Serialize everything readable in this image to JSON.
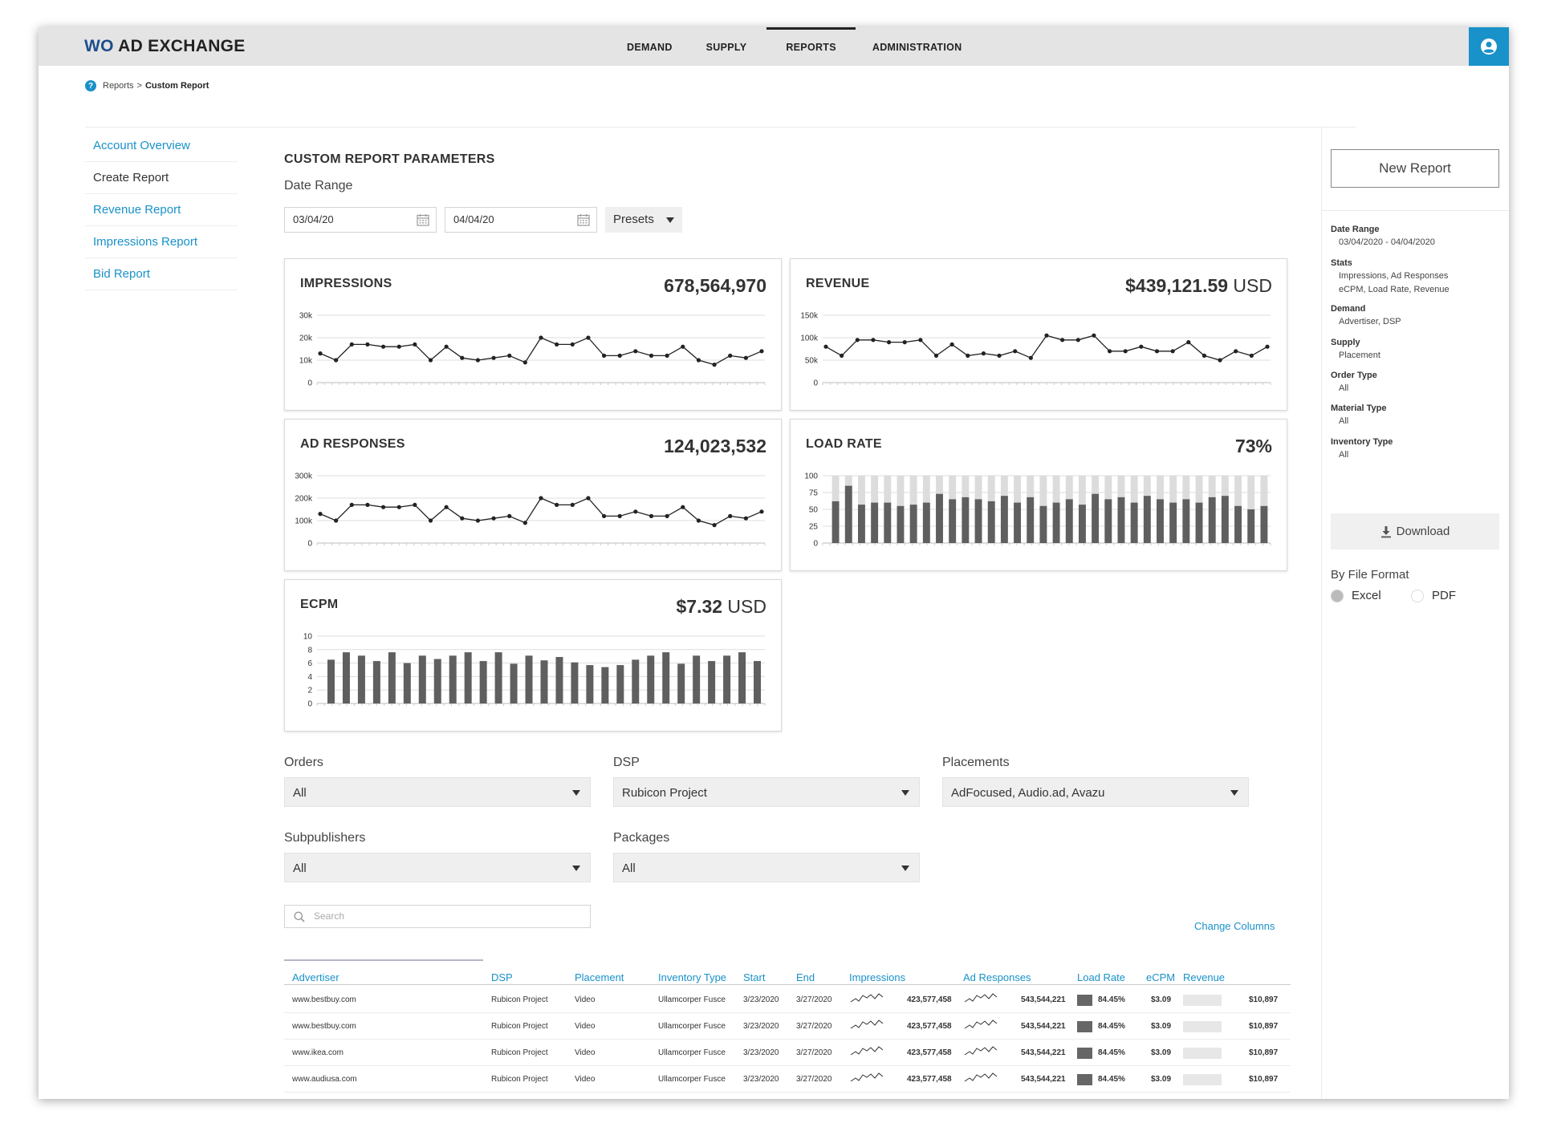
{
  "app": {
    "logo_prefix": "WO",
    "logo_rest": " AD EXCHANGE",
    "nav": [
      "DEMAND",
      "SUPPLY",
      "REPORTS",
      "ADMINISTRATION"
    ],
    "active_nav": "REPORTS"
  },
  "breadcrumb": {
    "parent": "Reports",
    "separator": ">",
    "current": "Custom Report"
  },
  "sidebar": {
    "items": [
      {
        "label": "Account Overview"
      },
      {
        "label": "Create Report"
      },
      {
        "label": "Revenue Report"
      },
      {
        "label": "Impressions Report"
      },
      {
        "label": "Bid Report"
      }
    ]
  },
  "params": {
    "title": "CUSTOM REPORT PARAMETERS",
    "date_range_label": "Date Range",
    "start_date": "03/04/20",
    "end_date": "04/04/20",
    "presets_label": "Presets"
  },
  "cards": [
    {
      "title": "IMPRESSIONS",
      "value": "678,564,970",
      "unit": ""
    },
    {
      "title": "REVENUE",
      "value": "$439,121.59",
      "unit": " USD"
    },
    {
      "title": "AD RESPONSES",
      "value": "124,023,532",
      "unit": ""
    },
    {
      "title": "LOAD RATE",
      "value": "73%",
      "unit": ""
    },
    {
      "title": "ECPM",
      "value": "$7.32",
      "unit": " USD"
    }
  ],
  "chart_data": [
    {
      "type": "line",
      "title": "IMPRESSIONS",
      "yticks": [
        "0",
        "10k",
        "20k",
        "30k"
      ],
      "ylim": [
        0,
        30000
      ],
      "values": [
        13000,
        10000,
        17000,
        17000,
        16000,
        16000,
        17000,
        10000,
        16000,
        11000,
        10000,
        11000,
        12000,
        9000,
        20000,
        17000,
        17000,
        20000,
        12000,
        12000,
        14000,
        12000,
        12000,
        16000,
        10000,
        8000,
        12000,
        11000,
        14000
      ]
    },
    {
      "type": "line",
      "title": "REVENUE",
      "yticks": [
        "0",
        "50k",
        "100k",
        "150k"
      ],
      "ylim": [
        0,
        150000
      ],
      "values": [
        80000,
        60000,
        95000,
        95000,
        90000,
        90000,
        95000,
        60000,
        85000,
        60000,
        65000,
        60000,
        70000,
        55000,
        105000,
        95000,
        95000,
        105000,
        70000,
        70000,
        80000,
        70000,
        70000,
        90000,
        60000,
        50000,
        70000,
        60000,
        80000
      ]
    },
    {
      "type": "line",
      "title": "AD RESPONSES",
      "yticks": [
        "0",
        "100k",
        "200k",
        "300k"
      ],
      "ylim": [
        0,
        300000
      ],
      "values": [
        130000,
        100000,
        170000,
        170000,
        160000,
        160000,
        170000,
        100000,
        160000,
        110000,
        100000,
        110000,
        120000,
        90000,
        200000,
        170000,
        170000,
        200000,
        120000,
        120000,
        140000,
        120000,
        120000,
        160000,
        100000,
        80000,
        120000,
        110000,
        140000
      ]
    },
    {
      "type": "bar",
      "title": "LOAD RATE",
      "yticks": [
        "0",
        "25",
        "50",
        "75",
        "100"
      ],
      "ylim": [
        0,
        100
      ],
      "background_bar": 100,
      "values": [
        62,
        85,
        57,
        60,
        60,
        55,
        57,
        60,
        73,
        65,
        68,
        65,
        62,
        70,
        60,
        68,
        55,
        60,
        65,
        57,
        73,
        65,
        68,
        60,
        70,
        65,
        60,
        65,
        60,
        68,
        70,
        55,
        50,
        55
      ]
    },
    {
      "type": "bar",
      "title": "ECPM",
      "yticks": [
        "0",
        "2",
        "4",
        "6",
        "8",
        "10"
      ],
      "ylim": [
        0,
        10
      ],
      "values": [
        6.5,
        7.6,
        7.1,
        6.3,
        7.6,
        6.0,
        7.1,
        6.6,
        7.1,
        7.6,
        6.3,
        7.6,
        5.9,
        7.1,
        6.4,
        6.9,
        6.1,
        5.7,
        5.4,
        5.7,
        6.5,
        7.1,
        7.6,
        5.9,
        7.1,
        6.3,
        7.1,
        7.6,
        6.3
      ]
    }
  ],
  "filters": {
    "orders": {
      "label": "Orders",
      "value": "All"
    },
    "dsp": {
      "label": "DSP",
      "value": "Rubicon Project"
    },
    "placements": {
      "label": "Placements",
      "value": "AdFocused, Audio.ad, Avazu"
    },
    "subpublishers": {
      "label": "Subpublishers",
      "value": "All"
    },
    "packages": {
      "label": "Packages",
      "value": "All"
    }
  },
  "search": {
    "placeholder": "Search"
  },
  "change_columns": "Change Columns",
  "table": {
    "columns": [
      "Advertiser",
      "DSP",
      "Placement",
      "Inventory Type",
      "Start",
      "End",
      "Impressions",
      "Ad Responses",
      "Load Rate",
      "eCPM",
      "Revenue"
    ],
    "rows": [
      {
        "advertiser": "www.bestbuy.com",
        "dsp": "Rubicon Project",
        "placement": "Video",
        "inventory": "Ullamcorper Fusce",
        "start": "3/23/2020",
        "end": "3/27/2020",
        "impressions": "423,577,458",
        "ad_responses": "543,544,221",
        "load_rate": "84.45%",
        "ecpm": "$3.09",
        "revenue": "$10,897"
      },
      {
        "advertiser": "www.bestbuy.com",
        "dsp": "Rubicon Project",
        "placement": "Video",
        "inventory": "Ullamcorper Fusce",
        "start": "3/23/2020",
        "end": "3/27/2020",
        "impressions": "423,577,458",
        "ad_responses": "543,544,221",
        "load_rate": "84.45%",
        "ecpm": "$3.09",
        "revenue": "$10,897"
      },
      {
        "advertiser": "www.ikea.com",
        "dsp": "Rubicon Project",
        "placement": "Video",
        "inventory": "Ullamcorper Fusce",
        "start": "3/23/2020",
        "end": "3/27/2020",
        "impressions": "423,577,458",
        "ad_responses": "543,544,221",
        "load_rate": "84.45%",
        "ecpm": "$3.09",
        "revenue": "$10,897"
      },
      {
        "advertiser": "www.audiusa.com",
        "dsp": "Rubicon Project",
        "placement": "Video",
        "inventory": "Ullamcorper Fusce",
        "start": "3/23/2020",
        "end": "3/27/2020",
        "impressions": "423,577,458",
        "ad_responses": "543,544,221",
        "load_rate": "84.45%",
        "ecpm": "$3.09",
        "revenue": "$10,897"
      }
    ]
  },
  "summary": {
    "new_report": "New Report",
    "sections": [
      {
        "title": "Date Range",
        "lines": [
          "03/04/2020 - 04/04/2020"
        ]
      },
      {
        "title": "Stats",
        "lines": [
          "Impressions, Ad Responses",
          "eCPM, Load Rate, Revenue"
        ]
      },
      {
        "title": "Demand",
        "lines": [
          "Advertiser, DSP"
        ]
      },
      {
        "title": "Supply",
        "lines": [
          "Placement"
        ]
      },
      {
        "title": "Order Type",
        "lines": [
          "All"
        ]
      },
      {
        "title": "Material Type",
        "lines": [
          "All"
        ]
      },
      {
        "title": "Inventory Type",
        "lines": [
          "All"
        ]
      }
    ],
    "download": "Download",
    "file_format_label": "By File Format",
    "formats": [
      "Excel",
      "PDF"
    ],
    "selected_format": "Excel"
  },
  "colors": {
    "accent": "#1991c9",
    "bar": "#5f5f5f",
    "bar_bg": "#dcdcdc",
    "line": "#222222"
  }
}
